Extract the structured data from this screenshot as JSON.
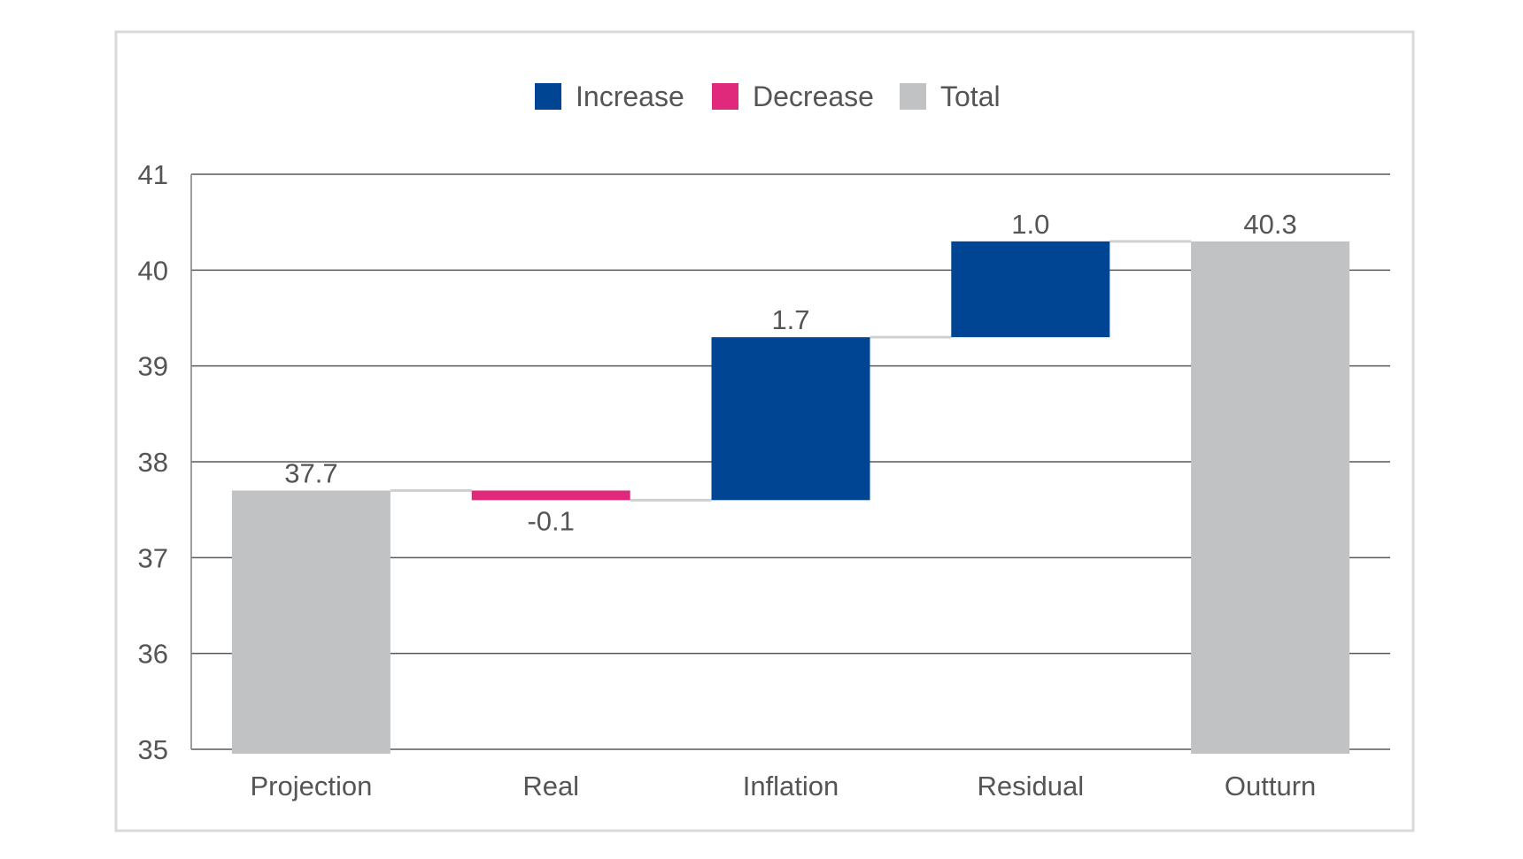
{
  "chart_data": {
    "type": "bar",
    "subtype": "waterfall",
    "categories": [
      "Projection",
      "Real",
      "Inflation",
      "Residual",
      "Outturn"
    ],
    "steps": [
      {
        "category": "Projection",
        "kind": "total",
        "value": 37.7,
        "label": "37.7"
      },
      {
        "category": "Real",
        "kind": "decrease",
        "value": -0.1,
        "label": "-0.1"
      },
      {
        "category": "Inflation",
        "kind": "increase",
        "value": 1.7,
        "label": "1.7"
      },
      {
        "category": "Residual",
        "kind": "increase",
        "value": 1.0,
        "label": "1.0"
      },
      {
        "category": "Outturn",
        "kind": "total",
        "value": 40.3,
        "label": "40.3"
      }
    ],
    "legend": [
      {
        "kind": "increase",
        "label": "Increase"
      },
      {
        "kind": "decrease",
        "label": "Decrease"
      },
      {
        "kind": "total",
        "label": "Total"
      }
    ],
    "legend_position": "top",
    "colors": {
      "increase": "#004494",
      "decrease": "#E0297A",
      "total": "#C1C2C4"
    },
    "ylim": [
      35,
      41
    ],
    "yticks": [
      35,
      36,
      37,
      38,
      39,
      40,
      41
    ],
    "grid": true,
    "connectors": true,
    "title": "",
    "xlabel": "",
    "ylabel": ""
  }
}
